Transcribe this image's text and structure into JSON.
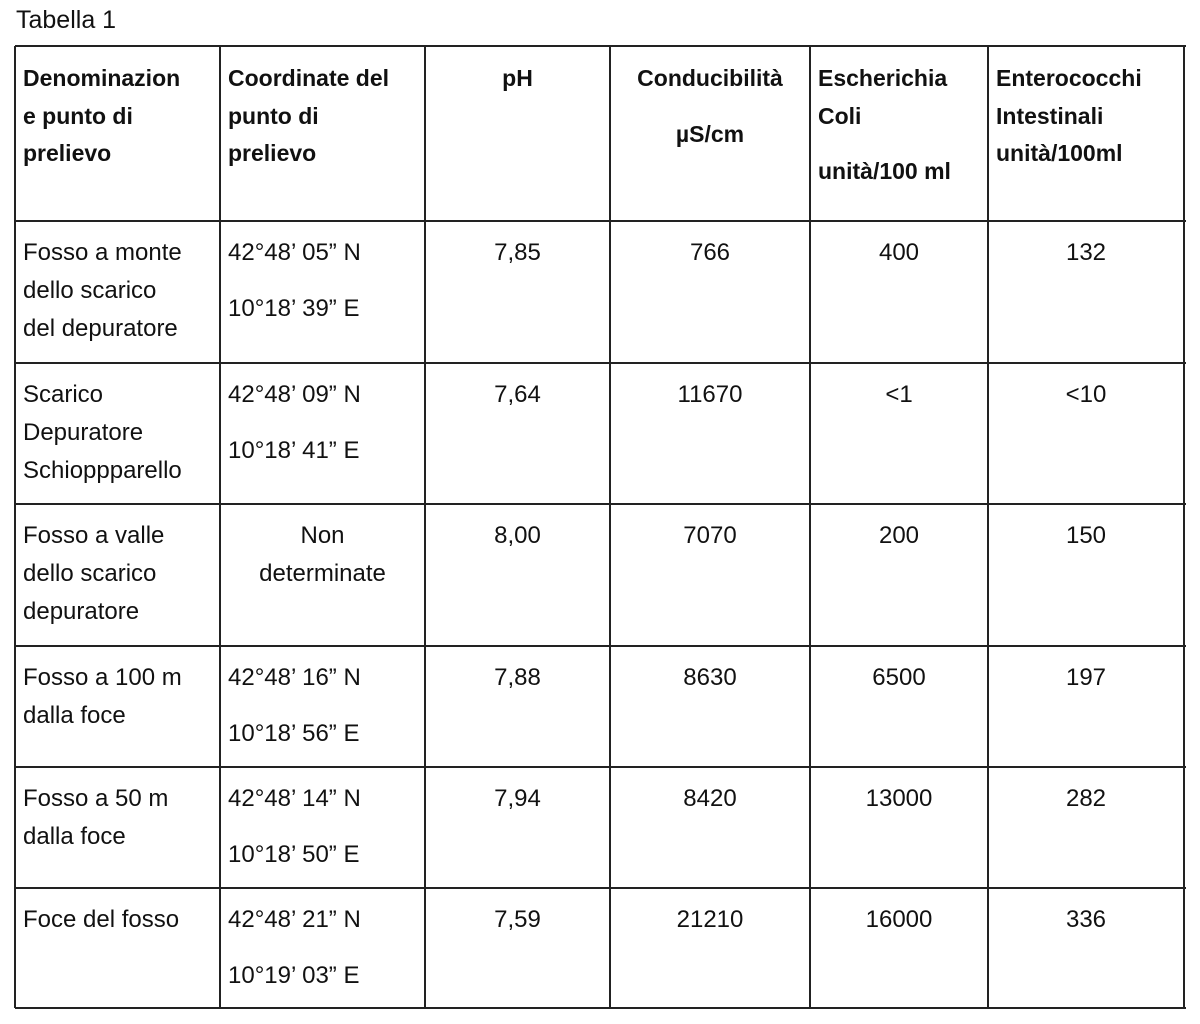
{
  "caption": "Tabella 1",
  "table": {
    "header": [
      [
        "Denominazion",
        "e punto di",
        "prelievo"
      ],
      [
        "Coordinate del",
        "punto di",
        "prelievo"
      ],
      [
        "pH"
      ],
      [
        "Conducibilità",
        "µS/cm"
      ],
      [
        "Escherichia",
        "Coli",
        "unità/100 ml"
      ],
      [
        "Enterococchi",
        "Intestinali",
        "unità/100ml"
      ]
    ],
    "rows": [
      [
        [
          "Fosso a monte",
          "dello scarico",
          "del depuratore"
        ],
        [
          "42°48’ 05” N",
          "10°18’ 39” E"
        ],
        [
          "7,85"
        ],
        [
          "766"
        ],
        [
          "400"
        ],
        [
          "132"
        ]
      ],
      [
        [
          "Scarico",
          "Depuratore",
          "Schioppparello"
        ],
        [
          "42°48’ 09” N",
          "10°18’ 41” E"
        ],
        [
          "7,64"
        ],
        [
          "11670"
        ],
        [
          "<1"
        ],
        [
          "<10"
        ]
      ],
      [
        [
          "Fosso a valle",
          "dello scarico",
          "depuratore"
        ],
        [
          "Non",
          "determinate"
        ],
        [
          "8,00"
        ],
        [
          "7070"
        ],
        [
          "200"
        ],
        [
          "150"
        ]
      ],
      [
        [
          "Fosso a 100 m",
          "dalla foce"
        ],
        [
          "42°48’ 16” N",
          "10°18’ 56” E"
        ],
        [
          "7,88"
        ],
        [
          "8630"
        ],
        [
          "6500"
        ],
        [
          "197"
        ]
      ],
      [
        [
          "Fosso a 50 m",
          "dalla foce"
        ],
        [
          "42°48’ 14” N",
          "10°18’ 50” E"
        ],
        [
          "7,94"
        ],
        [
          "8420"
        ],
        [
          "13000"
        ],
        [
          "282"
        ]
      ],
      [
        [
          "Foce del fosso"
        ],
        [
          "42°48’ 21” N",
          "10°19’ 03” E"
        ],
        [
          "7,59"
        ],
        [
          "21210"
        ],
        [
          "16000"
        ],
        [
          "336"
        ]
      ]
    ]
  }
}
